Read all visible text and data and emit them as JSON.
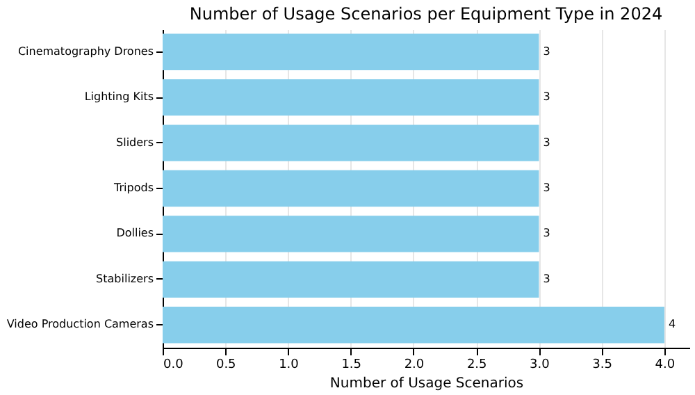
{
  "chart_data": {
    "type": "bar",
    "orientation": "horizontal",
    "title": "Number of Usage Scenarios per Equipment Type in 2024",
    "xlabel": "Number of Usage Scenarios",
    "categories": [
      "Cinematography Drones",
      "Lighting Kits",
      "Sliders",
      "Tripods",
      "Dollies",
      "Stabilizers",
      "Video Production Cameras"
    ],
    "values": [
      3,
      3,
      3,
      3,
      3,
      3,
      4
    ],
    "color": "#87ceeb",
    "xlim": [
      0,
      4.2
    ],
    "xticks": [
      {
        "value": 0,
        "label": "0.0"
      },
      {
        "value": 0.5,
        "label": "0.5"
      },
      {
        "value": 1,
        "label": "1.0"
      },
      {
        "value": 1.5,
        "label": "1.5"
      },
      {
        "value": 2,
        "label": "2.0"
      },
      {
        "value": 2.5,
        "label": "2.5"
      },
      {
        "value": 3,
        "label": "3.0"
      },
      {
        "value": 3.5,
        "label": "3.5"
      },
      {
        "value": 4,
        "label": "4.0"
      }
    ],
    "grid": true,
    "data_labels": true
  }
}
